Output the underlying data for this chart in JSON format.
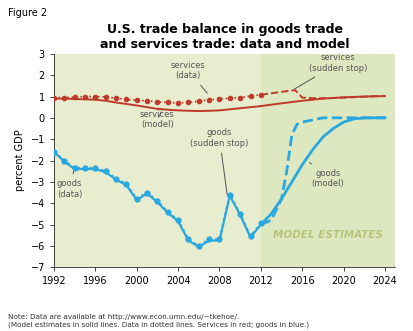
{
  "title": "U.S. trade balance in goods trade\nand services trade: data and model",
  "figure_label": "Figure 2",
  "ylabel": "percent GDP",
  "note": "Note: Data are available at http://www.econ.umn.edu/~tkehoe/.\n(Model estimates in solid lines. Data in dotted lines. Services in red; goods in blue.)",
  "xlim": [
    1992,
    2025
  ],
  "ylim": [
    -7,
    3
  ],
  "yticks": [
    -7,
    -6,
    -5,
    -4,
    -3,
    -2,
    -1,
    0,
    1,
    2,
    3
  ],
  "xticks": [
    1992,
    1996,
    2000,
    2004,
    2008,
    2012,
    2016,
    2020,
    2024
  ],
  "bg_color_data": "#e8edcf",
  "bg_color_model": "#dde8c0",
  "model_start": 2012,
  "plot_end": 2025,
  "services_data_x": [
    1992,
    1993,
    1994,
    1995,
    1996,
    1997,
    1998,
    1999,
    2000,
    2001,
    2002,
    2003,
    2004,
    2005,
    2006,
    2007,
    2008,
    2009,
    2010,
    2011,
    2012
  ],
  "services_data_y": [
    0.95,
    0.95,
    0.97,
    1.0,
    1.0,
    0.98,
    0.92,
    0.87,
    0.82,
    0.8,
    0.75,
    0.72,
    0.7,
    0.72,
    0.78,
    0.85,
    0.88,
    0.92,
    0.95,
    1.02,
    1.08
  ],
  "services_model_x": [
    1992,
    1993,
    1994,
    1995,
    1996,
    1997,
    1998,
    1999,
    2000,
    2001,
    2002,
    2003,
    2004,
    2005,
    2006,
    2007,
    2008,
    2009,
    2010,
    2011,
    2012
  ],
  "services_model_y": [
    0.9,
    0.9,
    0.88,
    0.87,
    0.85,
    0.8,
    0.72,
    0.65,
    0.58,
    0.5,
    0.42,
    0.38,
    0.35,
    0.33,
    0.32,
    0.33,
    0.35,
    0.4,
    0.45,
    0.5,
    0.55
  ],
  "goods_data_x": [
    1992,
    1993,
    1994,
    1995,
    1996,
    1997,
    1998,
    1999,
    2000,
    2001,
    2002,
    2003,
    2004,
    2005,
    2006,
    2007,
    2008,
    2009,
    2010,
    2011,
    2012
  ],
  "goods_data_y": [
    -1.6,
    -2.0,
    -2.35,
    -2.35,
    -2.35,
    -2.5,
    -2.85,
    -3.1,
    -3.8,
    -3.5,
    -3.9,
    -4.4,
    -4.8,
    -5.7,
    -6.0,
    -5.7,
    -5.7,
    -3.6,
    -4.5,
    -5.55,
    -4.95
  ],
  "goods_model_x": [
    1992,
    1993,
    1994,
    1995,
    1996,
    1997,
    1998,
    1999,
    2000,
    2001,
    2002,
    2003,
    2004,
    2005,
    2006,
    2007,
    2008,
    2009,
    2010,
    2011,
    2012
  ],
  "goods_model_y": [
    -1.6,
    -2.05,
    -2.4,
    -2.4,
    -2.4,
    -2.55,
    -2.9,
    -3.15,
    -3.85,
    -3.55,
    -3.95,
    -4.45,
    -4.85,
    -5.75,
    -6.05,
    -5.75,
    -5.75,
    -3.65,
    -4.55,
    -5.6,
    -5.0
  ],
  "services_model_post_x": [
    2012,
    2014,
    2016,
    2018,
    2020,
    2022,
    2024
  ],
  "services_model_post_y": [
    0.55,
    0.68,
    0.8,
    0.9,
    0.96,
    1.0,
    1.02
  ],
  "goods_model_post_x": [
    2012,
    2013,
    2014,
    2015,
    2016,
    2017,
    2018,
    2019,
    2020,
    2021,
    2022,
    2023,
    2024
  ],
  "goods_model_post_y": [
    -5.0,
    -4.5,
    -3.8,
    -3.0,
    -2.2,
    -1.5,
    -0.9,
    -0.5,
    -0.2,
    -0.05,
    0.0,
    0.0,
    0.0
  ],
  "services_sudden_x": [
    2012,
    2013,
    2014,
    2015,
    2015.3,
    2016,
    2017,
    2018,
    2019,
    2020,
    2021,
    2022,
    2023,
    2024
  ],
  "services_sudden_y": [
    1.08,
    1.15,
    1.22,
    1.28,
    1.3,
    0.95,
    0.92,
    0.92,
    0.93,
    0.95,
    0.97,
    0.99,
    1.01,
    1.02
  ],
  "goods_sudden_x": [
    2012,
    2013,
    2014,
    2014.5,
    2015,
    2015.5,
    2016,
    2017,
    2018,
    2019,
    2020,
    2021,
    2022,
    2023,
    2024
  ],
  "goods_sudden_y": [
    -5.0,
    -4.8,
    -3.8,
    -2.5,
    -0.8,
    -0.3,
    -0.2,
    -0.1,
    0.0,
    0.0,
    0.0,
    0.0,
    0.0,
    0.0,
    0.0
  ],
  "red_color": "#c0392b",
  "blue_color": "#29a8e0",
  "annotation_color": "#555555",
  "model_text_color": "#b5c47a"
}
